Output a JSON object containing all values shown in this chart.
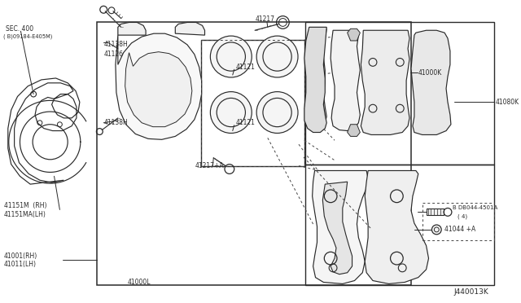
{
  "bg_color": "#ffffff",
  "diagram_id": "J440013K",
  "lc": "#2a2a2a",
  "lw": 0.85,
  "labels": {
    "sec400": "SEC. 400",
    "bolt1": "( B)09184-E405M)",
    "part1": "41151M  (RH)",
    "part1a": "41151MA(LH)",
    "part2": "41001(RH)",
    "part2a": "41011(LH)",
    "part3": "41138H",
    "part3a": "41126",
    "part3b": "41138H",
    "part4": "41217",
    "part5": "41121",
    "part5a": "41121",
    "part6": "41217+A",
    "part7": "41000K",
    "part8": "41080K",
    "part9": "B DB044-4501A",
    "part9a": "( 4)",
    "part10": "41044 +A",
    "part11": "41000L"
  },
  "fs": 5.5,
  "fs_small": 5.0
}
